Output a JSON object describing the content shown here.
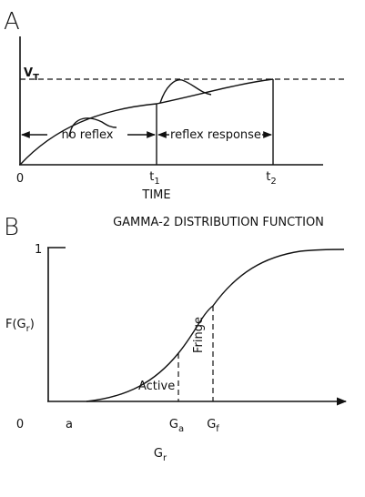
{
  "panel_a": {
    "label": "A",
    "threshold": {
      "base": "V",
      "sub": "T"
    },
    "region_1": "no reflex",
    "region_2": "reflex response",
    "origin": "0",
    "t1": {
      "base": "t",
      "sub": "1"
    },
    "t2": {
      "base": "t",
      "sub": "2"
    },
    "x_label": "TIME"
  },
  "panel_b": {
    "label": "B",
    "title": "GAMMA-2 DISTRIBUTION FUNCTION",
    "y_top": "1",
    "y_label": {
      "base": "F(G",
      "sub": "r",
      "end": ")"
    },
    "region_1": "Active",
    "region_2": "Fringe",
    "origin": "0",
    "a": "a",
    "ga": {
      "base": "G",
      "sub": "a"
    },
    "gf": {
      "base": "G",
      "sub": "f"
    },
    "x_label": {
      "base": "G",
      "sub": "r"
    }
  }
}
